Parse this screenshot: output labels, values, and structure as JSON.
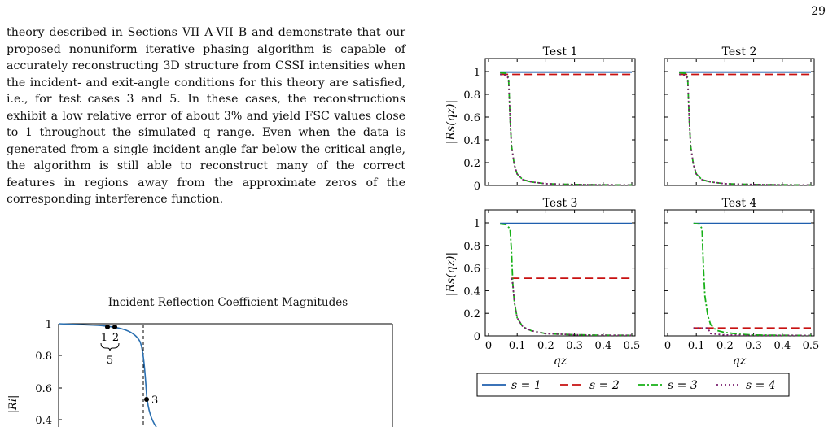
{
  "page_number": "29",
  "body_text": "theory described in Sections VII A-VII B and demonstrate that our proposed nonuniform iterative phasing algorithm is capable of accurately reconstructing 3D structure from CSSI intensities when the incident- and exit-angle conditions for this theory are satisfied, i.e., for test cases 3 and 5. In these cases, the reconstructions exhibit a low relative error of about 3% and yield FSC values close to 1 throughout the simulated q range. Even when the data is generated from a single incident angle far below the critical angle, the algorithm is still able to reconstruct many of the correct features in regions away from the approximate zeros of the corresponding interference function.",
  "incident_chart": {
    "title": "Incident Reflection Coefficient Magnitudes",
    "ylabel": "|Ri|",
    "yticks": [
      "1",
      "0.8",
      "0.6",
      "0.4"
    ],
    "point_labels": {
      "p1": "1",
      "p2": "2",
      "p3": "3",
      "p5": "5"
    }
  },
  "chart_data": [
    {
      "type": "line",
      "title": "Test 1",
      "xlabel": "",
      "ylabel": "|Rs(qz)|",
      "xlim": [
        0,
        0.5
      ],
      "ylim": [
        0,
        1
      ],
      "series": [
        {
          "name": "s = 1",
          "x": [
            0.04,
            0.5
          ],
          "y": [
            0.995,
            0.995
          ]
        },
        {
          "name": "s = 2",
          "x": [
            0.04,
            0.5
          ],
          "y": [
            0.975,
            0.975
          ]
        },
        {
          "name": "s = 3",
          "x": [
            0.04,
            0.06,
            0.07,
            0.075,
            0.08,
            0.09,
            0.1,
            0.12,
            0.15,
            0.2,
            0.3,
            0.4,
            0.5
          ],
          "y": [
            0.99,
            0.985,
            0.95,
            0.6,
            0.35,
            0.18,
            0.1,
            0.05,
            0.03,
            0.015,
            0.008,
            0.005,
            0.004
          ]
        },
        {
          "name": "s = 4",
          "x": [
            0.04,
            0.06,
            0.07,
            0.075,
            0.08,
            0.09,
            0.1,
            0.12,
            0.15,
            0.2,
            0.3,
            0.4,
            0.5
          ],
          "y": [
            0.975,
            0.97,
            0.94,
            0.6,
            0.35,
            0.18,
            0.1,
            0.05,
            0.03,
            0.015,
            0.008,
            0.005,
            0.004
          ]
        }
      ]
    },
    {
      "type": "line",
      "title": "Test 2",
      "xlim": [
        0,
        0.5
      ],
      "ylim": [
        0,
        1
      ],
      "series": [
        {
          "name": "s = 1",
          "x": [
            0.04,
            0.5
          ],
          "y": [
            0.995,
            0.995
          ]
        },
        {
          "name": "s = 2",
          "x": [
            0.04,
            0.5
          ],
          "y": [
            0.975,
            0.975
          ]
        },
        {
          "name": "s = 3",
          "x": [
            0.04,
            0.06,
            0.07,
            0.075,
            0.08,
            0.09,
            0.1,
            0.12,
            0.15,
            0.2,
            0.3,
            0.4,
            0.5
          ],
          "y": [
            0.99,
            0.985,
            0.95,
            0.6,
            0.35,
            0.18,
            0.1,
            0.05,
            0.03,
            0.015,
            0.008,
            0.005,
            0.004
          ]
        },
        {
          "name": "s = 4",
          "x": [
            0.04,
            0.06,
            0.07,
            0.075,
            0.08,
            0.09,
            0.1,
            0.12,
            0.15,
            0.2,
            0.3,
            0.4,
            0.5
          ],
          "y": [
            0.975,
            0.97,
            0.94,
            0.6,
            0.35,
            0.18,
            0.1,
            0.05,
            0.03,
            0.015,
            0.008,
            0.005,
            0.004
          ]
        }
      ]
    },
    {
      "type": "line",
      "title": "Test 3",
      "xlabel": "qz",
      "ylabel": "|Rs(qz)|",
      "xlim": [
        0,
        0.5
      ],
      "ylim": [
        0,
        1
      ],
      "series": [
        {
          "name": "s = 1",
          "x": [
            0.04,
            0.5
          ],
          "y": [
            0.995,
            0.995
          ]
        },
        {
          "name": "s = 2",
          "x": [
            0.08,
            0.5
          ],
          "y": [
            0.51,
            0.51
          ]
        },
        {
          "name": "s = 3",
          "x": [
            0.04,
            0.06,
            0.075,
            0.08,
            0.085,
            0.09,
            0.1,
            0.12,
            0.15,
            0.2,
            0.3,
            0.4,
            0.5
          ],
          "y": [
            0.99,
            0.985,
            0.95,
            0.75,
            0.45,
            0.3,
            0.16,
            0.08,
            0.045,
            0.02,
            0.01,
            0.006,
            0.005
          ]
        },
        {
          "name": "s = 4",
          "x": [
            0.08,
            0.085,
            0.09,
            0.1,
            0.12,
            0.15,
            0.2,
            0.3,
            0.4,
            0.5
          ],
          "y": [
            0.51,
            0.45,
            0.3,
            0.16,
            0.08,
            0.045,
            0.02,
            0.01,
            0.006,
            0.005
          ]
        }
      ]
    },
    {
      "type": "line",
      "title": "Test 4",
      "xlabel": "qz",
      "xlim": [
        0,
        0.5
      ],
      "ylim": [
        0,
        1
      ],
      "series": [
        {
          "name": "s = 1",
          "x": [
            0.09,
            0.5
          ],
          "y": [
            0.995,
            0.995
          ]
        },
        {
          "name": "s = 2",
          "x": [
            0.09,
            0.5
          ],
          "y": [
            0.07,
            0.07
          ]
        },
        {
          "name": "s = 3",
          "x": [
            0.09,
            0.11,
            0.12,
            0.125,
            0.13,
            0.14,
            0.15,
            0.17,
            0.2,
            0.25,
            0.3,
            0.4,
            0.5
          ],
          "y": [
            0.995,
            0.99,
            0.95,
            0.6,
            0.35,
            0.18,
            0.1,
            0.05,
            0.03,
            0.015,
            0.008,
            0.005,
            0.004
          ]
        },
        {
          "name": "s = 4",
          "x": [
            0.09,
            0.14,
            0.15,
            0.2,
            0.3,
            0.4,
            0.5
          ],
          "y": [
            0.07,
            0.07,
            0.02,
            0.008,
            0.005,
            0.004,
            0.004
          ]
        }
      ]
    }
  ],
  "axis_text": {
    "xticks": [
      "0",
      "0.1",
      "0.2",
      "0.3",
      "0.4",
      "0.5"
    ],
    "yticks": [
      "0",
      "0.2",
      "0.4",
      "0.6",
      "0.8",
      "1"
    ],
    "ylabel": "|Rs(qz)|",
    "xlabel": "qz"
  },
  "legend": [
    {
      "label": "s = 1",
      "color": "#1f5fae",
      "dash": "none"
    },
    {
      "label": "s = 2",
      "color": "#c81010",
      "dash": "10 5"
    },
    {
      "label": "s = 3",
      "color": "#17b017",
      "dash": "8 3 2 3"
    },
    {
      "label": "s = 4",
      "color": "#7a1f6e",
      "dash": "2 3"
    }
  ],
  "colors": {
    "s1": "#1f5fae",
    "s2": "#c81010",
    "s3": "#17b017",
    "s4": "#7a1f6e",
    "incident": "#2a6fb0"
  }
}
